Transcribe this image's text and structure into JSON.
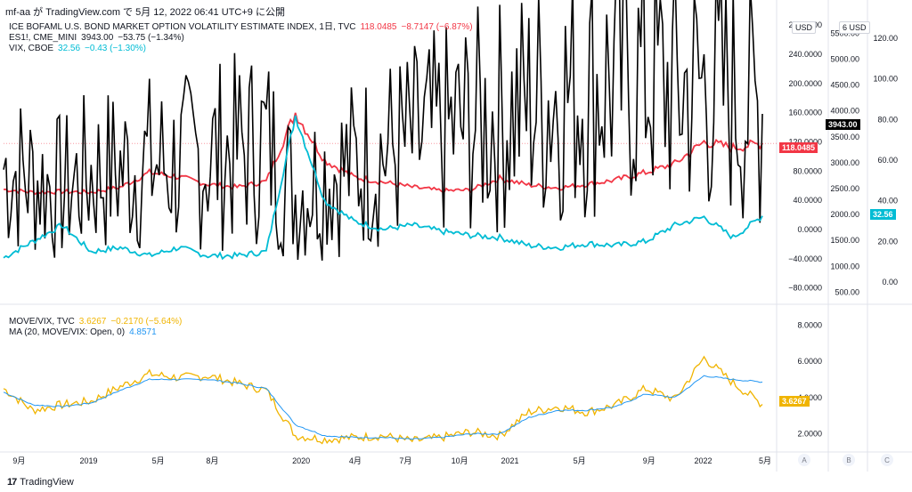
{
  "header": {
    "text": "mf-aa が TradingView.com で 5月 12, 2022 06:41 UTC+9 に公開"
  },
  "legend_top": [
    {
      "name": "ICE BOFAML U.S. BOND MARKET OPTION VOLATILITY ESTIMATE INDEX, 1日, TVC",
      "value": "118.0485",
      "change": "−8.7147 (−6.87%)",
      "color": "#f23645"
    },
    {
      "name": "ES1!, CME_MINI",
      "value": "3943.00",
      "change": "−53.75 (−1.34%)",
      "color": "#131722"
    },
    {
      "name": "VIX, CBOE",
      "value": "32.56",
      "change": "−0.43 (−1.30%)",
      "color": "#00bcd4"
    }
  ],
  "legend_bottom": [
    {
      "name": "MOVE/VIX, TVC",
      "value": "3.6267",
      "change": "−0.2170 (−5.64%)",
      "color": "#f0b400"
    },
    {
      "name": "MA (20, MOVE/VIX: Open, 0)",
      "value": "4.8571",
      "change": "",
      "color": "#2196f3"
    }
  ],
  "axes": {
    "currency": "USD",
    "currency_short": "6 USD",
    "axisA_ticks": [
      "280.0000",
      "240.0000",
      "200.0000",
      "160.0000",
      "120.0000",
      "80.0000",
      "40.0000",
      "0.0000",
      "−40.0000",
      "−80.0000"
    ],
    "axisB_ticks": [
      "5500.00",
      "5000.00",
      "4500.00",
      "4000.00",
      "3500.00",
      "3000.00",
      "2500.00",
      "2000.00",
      "1500.00",
      "1000.00",
      "500.00"
    ],
    "axisC_ticks": [
      "120.00",
      "100.00",
      "80.00",
      "60.00",
      "40.00",
      "20.00",
      "0.00"
    ],
    "lower_ticks": [
      "8.0000",
      "6.0000",
      "4.0000",
      "2.0000"
    ],
    "time_labels": [
      "9月",
      "2019",
      "5月",
      "8月",
      "2020",
      "4月",
      "7月",
      "10月",
      "2021",
      "5月",
      "9月",
      "2022",
      "5月"
    ],
    "scale_buttons": [
      "A",
      "B",
      "C"
    ]
  },
  "tags": {
    "move": {
      "text": "118.0485",
      "color": "#f23645"
    },
    "es": {
      "text": "3943.00",
      "color": "#000000"
    },
    "vix": {
      "text": "32.56",
      "color": "#00bcd4"
    },
    "ratio": {
      "text": "3.6267",
      "color": "#f0b400"
    }
  },
  "footer": {
    "logo": "17",
    "brand": "TradingView"
  },
  "chart_data": [
    {
      "type": "line",
      "title": "",
      "x": [
        "2018-09",
        "2018-11",
        "2019-01",
        "2019-03",
        "2019-05",
        "2019-07",
        "2019-09",
        "2019-11",
        "2020-01",
        "2020-02",
        "2020-03",
        "2020-04",
        "2020-05",
        "2020-07",
        "2020-09",
        "2020-11",
        "2021-01",
        "2021-03",
        "2021-05",
        "2021-07",
        "2021-09",
        "2021-11",
        "2022-01",
        "2022-02",
        "2022-03",
        "2022-04",
        "2022-05"
      ],
      "series": [
        {
          "name": "ICE BOFAML U.S. BOND MARKET OPTION VOLATILITY ESTIMATE INDEX, 1日, TVC",
          "axis": "A",
          "color": "#f23645",
          "values": [
            55,
            51,
            52,
            51,
            58,
            78,
            72,
            62,
            58,
            66,
            160,
            95,
            72,
            65,
            58,
            53,
            54,
            70,
            61,
            57,
            62,
            68,
            78,
            90,
            120,
            112,
            118
          ]
        },
        {
          "name": "ES1!, CME_MINI",
          "axis": "B",
          "color": "#000000",
          "values": [
            2900,
            2700,
            2480,
            2800,
            2880,
            2990,
            2960,
            3130,
            3230,
            3380,
            2400,
            2800,
            2950,
            3200,
            3350,
            3550,
            3750,
            3900,
            4150,
            4350,
            4450,
            4650,
            4750,
            4400,
            4500,
            4300,
            3943
          ]
        },
        {
          "name": "VIX, CBOE",
          "axis": "C",
          "color": "#00bcd4",
          "values": [
            12,
            20,
            28,
            15,
            17,
            13,
            17,
            13,
            13,
            15,
            82,
            40,
            30,
            26,
            28,
            25,
            23,
            22,
            18,
            17,
            19,
            18,
            20,
            28,
            32,
            22,
            32.56
          ]
        }
      ],
      "ylim_A": [
        -100,
        290
      ],
      "ylim_B": [
        300,
        5800
      ],
      "ylim_C": [
        -10,
        130
      ]
    },
    {
      "type": "line",
      "title": "",
      "x": [
        "2018-09",
        "2018-11",
        "2019-01",
        "2019-03",
        "2019-05",
        "2019-07",
        "2019-09",
        "2019-11",
        "2020-01",
        "2020-02",
        "2020-03",
        "2020-04",
        "2020-05",
        "2020-07",
        "2020-09",
        "2020-11",
        "2021-01",
        "2021-03",
        "2021-05",
        "2021-07",
        "2021-09",
        "2021-11",
        "2022-01",
        "2022-02",
        "2022-03",
        "2022-04",
        "2022-05"
      ],
      "series": [
        {
          "name": "MOVE/VIX, TVC",
          "color": "#f0b400",
          "values": [
            4.5,
            3.3,
            3.6,
            3.8,
            4.6,
            5.3,
            5.1,
            5.2,
            4.8,
            4.4,
            1.9,
            1.7,
            1.8,
            1.9,
            1.6,
            1.8,
            2.1,
            1.9,
            3.2,
            3.5,
            3.2,
            3.6,
            4.5,
            3.9,
            6.2,
            4.8,
            3.6267
          ]
        },
        {
          "name": "MA (20, MOVE/VIX: Open, 0)",
          "color": "#2196f3",
          "values": [
            4.3,
            3.6,
            3.5,
            3.7,
            4.4,
            5.0,
            5.0,
            5.0,
            4.8,
            4.5,
            2.5,
            1.9,
            1.8,
            1.8,
            1.7,
            1.8,
            2.0,
            2.0,
            2.9,
            3.3,
            3.3,
            3.5,
            4.2,
            4.0,
            5.2,
            5.0,
            4.8571
          ]
        }
      ],
      "ylim": [
        1,
        9
      ]
    }
  ]
}
